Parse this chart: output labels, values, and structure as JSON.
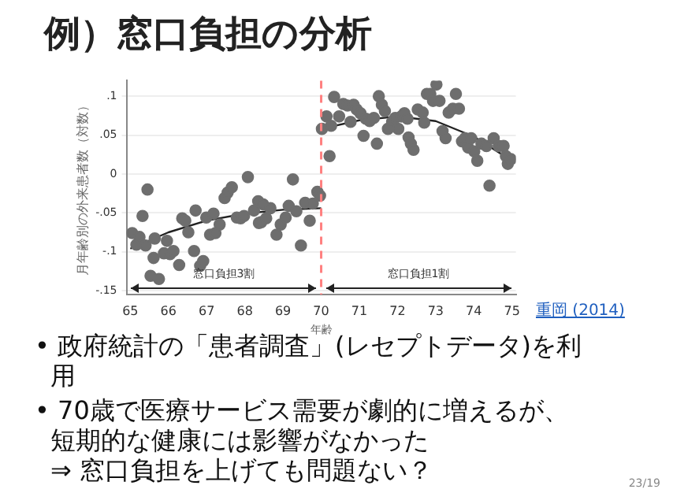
{
  "chart_data": {
    "type": "scatter",
    "title": "例）窓口負担の分析",
    "xlabel": "年齢",
    "ylabel": "月年齢別の外来患者数（対数）",
    "xlim": [
      64.9,
      75.1
    ],
    "xticks": [
      65,
      66,
      67,
      68,
      69,
      70,
      71,
      72,
      73,
      74,
      75
    ],
    "ylim": [
      -0.155,
      0.12
    ],
    "yticks": [
      {
        "value": 0.1,
        "label": ".1"
      },
      {
        "value": 0.05,
        "label": ".05"
      },
      0,
      {
        "value": -0.05,
        "label": "-.05"
      },
      {
        "value": -0.1,
        "label": "-.1"
      },
      {
        "value": -0.15,
        "label": "-.15"
      }
    ],
    "grid": "y",
    "marker": "circle",
    "legend": false,
    "series": [
      {
        "color": "#6e6e6e",
        "x": [
          65.05,
          65.16,
          65.24,
          65.32,
          65.4,
          65.45,
          65.53,
          65.61,
          65.64,
          65.75,
          65.88,
          65.96,
          66.04,
          66.13,
          66.28,
          66.36,
          66.44,
          66.52,
          66.67,
          66.71,
          66.83,
          66.91,
          66.99,
          67.09,
          67.18,
          67.23,
          67.34,
          67.47,
          67.55,
          67.66,
          67.79,
          67.89,
          67.98,
          68.08,
          68.24,
          68.35,
          68.37,
          68.43,
          68.48,
          68.56,
          68.67,
          68.83,
          68.94,
          69.07,
          69.15,
          69.26,
          69.35,
          69.47,
          69.58,
          69.7,
          69.78,
          69.9,
          69.97,
          70.02,
          70.14,
          70.22,
          70.26,
          70.34,
          70.47,
          70.58,
          70.69,
          70.77,
          70.85,
          70.93,
          71.03,
          71.11,
          71.17,
          71.27,
          71.38,
          71.46,
          71.51,
          71.59,
          71.67,
          71.75,
          71.86,
          71.94,
          72.02,
          72.1,
          72.18,
          72.26,
          72.29,
          72.35,
          72.42,
          72.53,
          72.66,
          72.7,
          72.77,
          72.86,
          72.93,
          73.02,
          73.1,
          73.18,
          73.26,
          73.34,
          73.45,
          73.53,
          73.61,
          73.69,
          73.77,
          73.85,
          73.93,
          74.01,
          74.09,
          74.2,
          74.33,
          74.41,
          74.52,
          74.65,
          74.78,
          74.84,
          74.89,
          74.97
        ],
        "values": [
          -0.076,
          -0.091,
          -0.081,
          -0.054,
          -0.092,
          -0.02,
          -0.131,
          -0.108,
          -0.083,
          -0.135,
          -0.102,
          -0.086,
          -0.103,
          -0.099,
          -0.117,
          -0.057,
          -0.06,
          -0.075,
          -0.099,
          -0.047,
          -0.118,
          -0.112,
          -0.056,
          -0.078,
          -0.051,
          -0.076,
          -0.065,
          -0.031,
          -0.024,
          -0.017,
          -0.056,
          -0.057,
          -0.054,
          -0.004,
          -0.047,
          -0.035,
          -0.063,
          -0.062,
          -0.039,
          -0.057,
          -0.044,
          -0.078,
          -0.065,
          -0.056,
          -0.041,
          -0.007,
          -0.048,
          -0.092,
          -0.037,
          -0.06,
          -0.038,
          -0.023,
          -0.028,
          0.058,
          0.074,
          0.023,
          0.062,
          0.099,
          0.074,
          0.09,
          0.088,
          0.067,
          0.089,
          0.083,
          0.078,
          0.049,
          0.071,
          0.068,
          0.072,
          0.039,
          0.1,
          0.089,
          0.081,
          0.058,
          0.067,
          0.072,
          0.058,
          0.074,
          0.078,
          0.071,
          0.047,
          0.039,
          0.031,
          0.083,
          0.079,
          0.066,
          0.103,
          0.103,
          0.094,
          0.115,
          0.094,
          0.055,
          0.046,
          0.079,
          0.084,
          0.103,
          0.084,
          0.042,
          0.046,
          0.034,
          0.046,
          0.029,
          0.017,
          0.039,
          0.036,
          -0.015,
          0.046,
          0.036,
          0.036,
          0.023,
          0.013,
          0.019
        ]
      },
      {
        "type": "line",
        "color": "#222222",
        "marker": "none",
        "x": [
          65,
          66,
          67,
          68,
          69,
          70
        ],
        "values": [
          -0.096,
          -0.075,
          -0.06,
          -0.051,
          -0.046,
          -0.044
        ]
      },
      {
        "type": "line",
        "color": "#222222",
        "marker": "none",
        "x": [
          70,
          71,
          72,
          73,
          74,
          75
        ],
        "values": [
          0.058,
          0.069,
          0.074,
          0.068,
          0.048,
          0.017
        ]
      }
    ],
    "ref_lines": [
      {
        "axis": "x",
        "value": 70,
        "color": "#ff8080",
        "line_style": "dashed"
      }
    ],
    "annotations": [
      "窓口負担3割",
      "窓口負担1割",
      "• 政府統計の「患者調査」(レセプトデータ)を利用",
      "• 70歳で医療サービス需要が劇的に増えるが、短期的な健康には影響がなかった\n⇒ 窓口負担を上げても問題ない？",
      "重岡 (2014)",
      "23/19"
    ]
  }
}
